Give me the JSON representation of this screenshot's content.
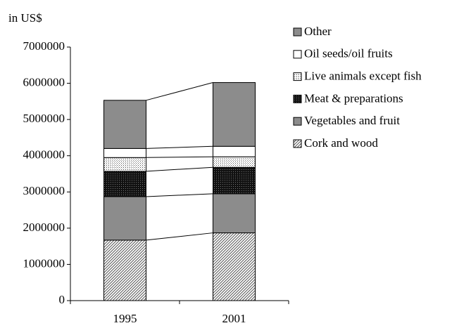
{
  "chart_data": {
    "type": "stacked_bar",
    "y_axis_label": "in US$",
    "categories": [
      "1995",
      "2001"
    ],
    "series": [
      {
        "name": "Cork and wood",
        "color": "#808080",
        "pattern": "hatch",
        "values": [
          1670000,
          1870000
        ]
      },
      {
        "name": "Vegetables and fruit",
        "color": "#8c8c8c",
        "pattern": "solid",
        "values": [
          1200000,
          1080000
        ]
      },
      {
        "name": "Meat & preparations",
        "color": "#222222",
        "pattern": "dots-dark",
        "values": [
          700000,
          730000
        ]
      },
      {
        "name": "Live animals except fish",
        "color": "#bbbbbb",
        "pattern": "dots-light",
        "values": [
          380000,
          290000
        ]
      },
      {
        "name": "Oil seeds/oil fruits",
        "color": "#ffffff",
        "pattern": "solid",
        "values": [
          250000,
          290000
        ]
      },
      {
        "name": "Other",
        "color": "#8c8c8c",
        "pattern": "solid",
        "values": [
          1330000,
          1760000
        ]
      }
    ],
    "ylim": [
      0,
      7000000
    ],
    "yticks": [
      0,
      1000000,
      2000000,
      3000000,
      4000000,
      5000000,
      6000000,
      7000000
    ],
    "legend": "right"
  }
}
